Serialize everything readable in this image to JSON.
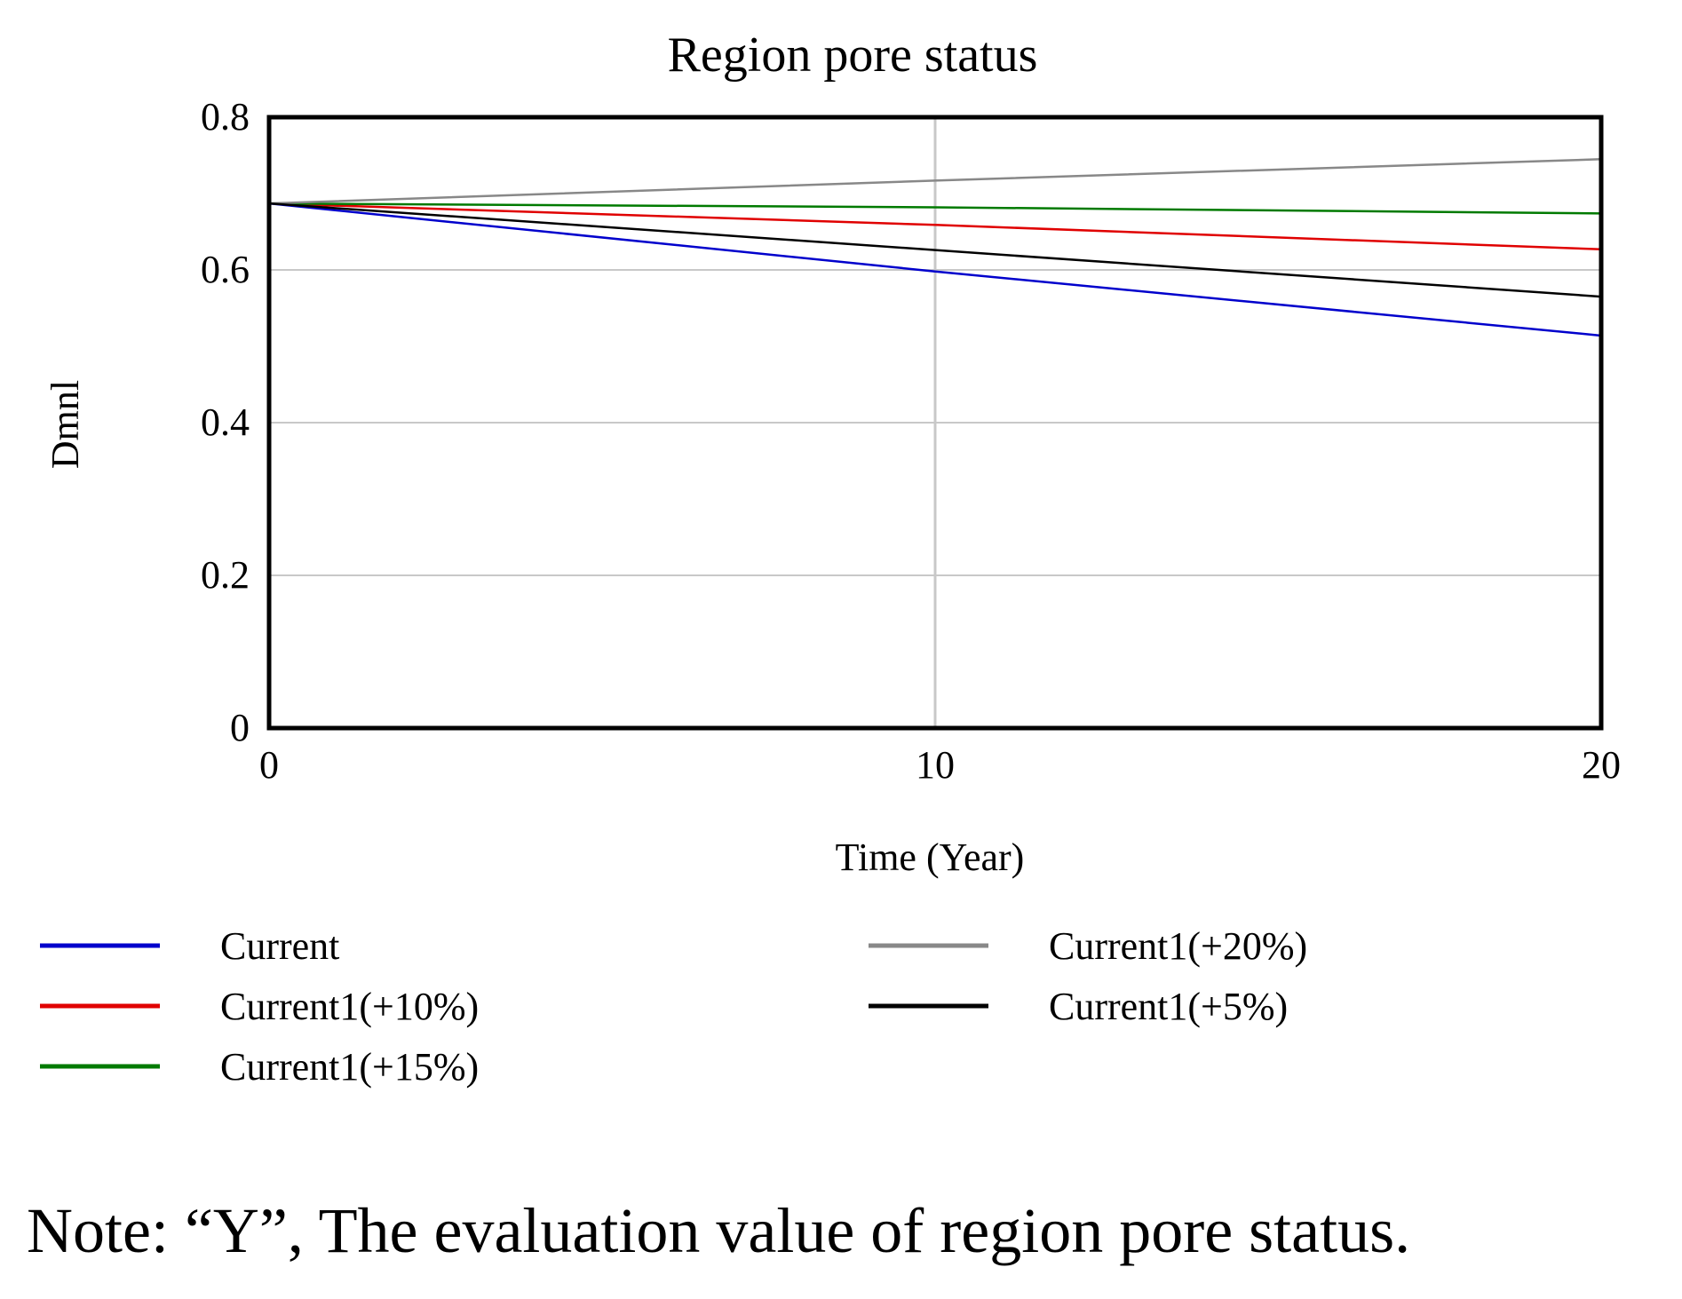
{
  "chart_data": {
    "type": "line",
    "title": "Region pore status",
    "xlabel": "Time (Year)",
    "ylabel": "Dmnl",
    "xlim": [
      0,
      20
    ],
    "ylim": [
      0,
      0.8
    ],
    "x_ticks": [
      0,
      10,
      20
    ],
    "y_ticks": [
      0,
      0.2,
      0.4,
      0.6,
      0.8
    ],
    "x_tick_labels": [
      "0",
      "10",
      "20"
    ],
    "y_tick_labels": [
      "0",
      "0.2",
      "0.4",
      "0.6",
      "0.8"
    ],
    "grid": true,
    "legend_position": "bottom",
    "x": [
      0,
      10,
      20
    ],
    "series": [
      {
        "name": "Current",
        "color": "#0000cc",
        "values": [
          0.687,
          0.598,
          0.514
        ]
      },
      {
        "name": "Current1(+10%)",
        "color": "#e00000",
        "values": [
          0.687,
          0.659,
          0.627
        ]
      },
      {
        "name": "Current1(+15%)",
        "color": "#007a00",
        "values": [
          0.687,
          0.682,
          0.674
        ]
      },
      {
        "name": "Current1(+20%)",
        "color": "#888888",
        "values": [
          0.687,
          0.717,
          0.745
        ]
      },
      {
        "name": "Current1(+5%)",
        "color": "#000000",
        "values": [
          0.687,
          0.626,
          0.565
        ]
      }
    ]
  },
  "note": "Note: “Y”, The evaluation value of region pore status."
}
